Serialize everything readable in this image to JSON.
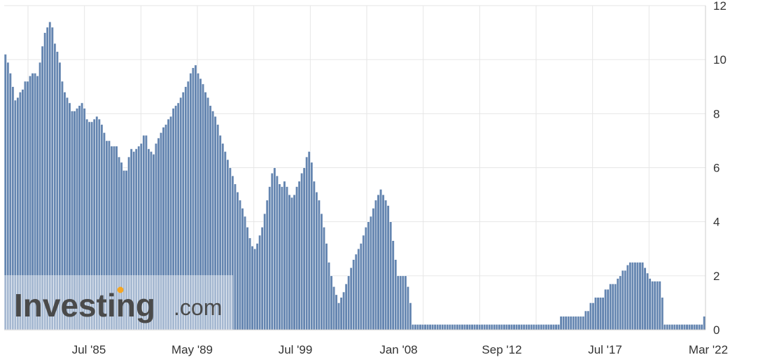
{
  "chart_data": {
    "type": "bar",
    "title": "",
    "xlabel": "",
    "ylabel": "",
    "ylim": [
      0,
      12
    ],
    "y_ticks": [
      "0",
      "2",
      "4",
      "6",
      "8",
      "10",
      "12"
    ],
    "x_tick_labels": [
      "Jul '85",
      "May '89",
      "Jul '99",
      "Jan '08",
      "Sep '12",
      "Jul '17",
      "Mar '22"
    ],
    "grid": true,
    "bar_color": "#6485b0",
    "series": [
      {
        "values": [
          10.2,
          9.9,
          9.5,
          9.0,
          8.5,
          8.6,
          8.8,
          8.9,
          9.2,
          9.2,
          9.4,
          9.5,
          9.5,
          9.4,
          9.9,
          10.5,
          11.0,
          11.2,
          11.4,
          11.2,
          10.6,
          10.3,
          9.9,
          9.2,
          8.8,
          8.6,
          8.4,
          8.1,
          8.1,
          8.2,
          8.3,
          8.4,
          8.2,
          7.8,
          7.7,
          7.7,
          7.8,
          7.9,
          7.8,
          7.6,
          7.3,
          7.0,
          7.0,
          6.8,
          6.8,
          6.8,
          6.4,
          6.2,
          5.9,
          5.9,
          6.4,
          6.7,
          6.6,
          6.7,
          6.8,
          6.9,
          7.2,
          7.2,
          6.7,
          6.6,
          6.5,
          6.9,
          7.1,
          7.3,
          7.5,
          7.6,
          7.8,
          7.9,
          8.2,
          8.3,
          8.4,
          8.6,
          8.8,
          9.0,
          9.2,
          9.5,
          9.7,
          9.8,
          9.5,
          9.3,
          9.1,
          8.8,
          8.6,
          8.3,
          8.1,
          7.9,
          7.6,
          7.2,
          6.9,
          6.6,
          6.3,
          6.0,
          5.7,
          5.4,
          5.1,
          4.8,
          4.5,
          4.2,
          3.8,
          3.4,
          3.1,
          3.0,
          3.2,
          3.5,
          3.8,
          4.3,
          4.8,
          5.3,
          5.8,
          6.0,
          5.7,
          5.4,
          5.3,
          5.5,
          5.3,
          5.0,
          4.9,
          5.0,
          5.3,
          5.5,
          5.8,
          6.0,
          6.4,
          6.6,
          6.2,
          5.5,
          5.1,
          4.8,
          4.3,
          3.8,
          3.2,
          2.5,
          2.0,
          1.6,
          1.3,
          1.0,
          1.2,
          1.4,
          1.7,
          2.0,
          2.3,
          2.6,
          2.8,
          3.0,
          3.2,
          3.5,
          3.8,
          4.0,
          4.2,
          4.5,
          4.8,
          5.0,
          5.2,
          5.0,
          4.8,
          4.6,
          4.0,
          3.3,
          2.6,
          2.0,
          2.0,
          2.0,
          2.0,
          1.6,
          1.0,
          0.2,
          0.2,
          0.2,
          0.2,
          0.2,
          0.2,
          0.2,
          0.2,
          0.2,
          0.2,
          0.2,
          0.2,
          0.2,
          0.2,
          0.2,
          0.2,
          0.2,
          0.2,
          0.2,
          0.2,
          0.2,
          0.2,
          0.2,
          0.2,
          0.2,
          0.2,
          0.2,
          0.2,
          0.2,
          0.2,
          0.2,
          0.2,
          0.2,
          0.2,
          0.2,
          0.2,
          0.2,
          0.2,
          0.2,
          0.2,
          0.2,
          0.2,
          0.2,
          0.2,
          0.2,
          0.2,
          0.2,
          0.2,
          0.2,
          0.2,
          0.2,
          0.2,
          0.2,
          0.2,
          0.2,
          0.2,
          0.2,
          0.2,
          0.2,
          0.2,
          0.5,
          0.5,
          0.5,
          0.5,
          0.5,
          0.5,
          0.5,
          0.5,
          0.5,
          0.5,
          0.7,
          0.7,
          1.0,
          1.0,
          1.2,
          1.2,
          1.2,
          1.2,
          1.5,
          1.5,
          1.7,
          1.7,
          1.7,
          1.9,
          2.0,
          2.2,
          2.2,
          2.4,
          2.5,
          2.5,
          2.5,
          2.5,
          2.5,
          2.5,
          2.3,
          2.1,
          1.9,
          1.8,
          1.8,
          1.8,
          1.8,
          1.2,
          0.2,
          0.2,
          0.2,
          0.2,
          0.2,
          0.2,
          0.2,
          0.2,
          0.2,
          0.2,
          0.2,
          0.2,
          0.2,
          0.2,
          0.2,
          0.2,
          0.5
        ]
      }
    ]
  },
  "watermark": {
    "brand": "Investing",
    "suffix": ".com",
    "accent_color": "#f5a623"
  }
}
